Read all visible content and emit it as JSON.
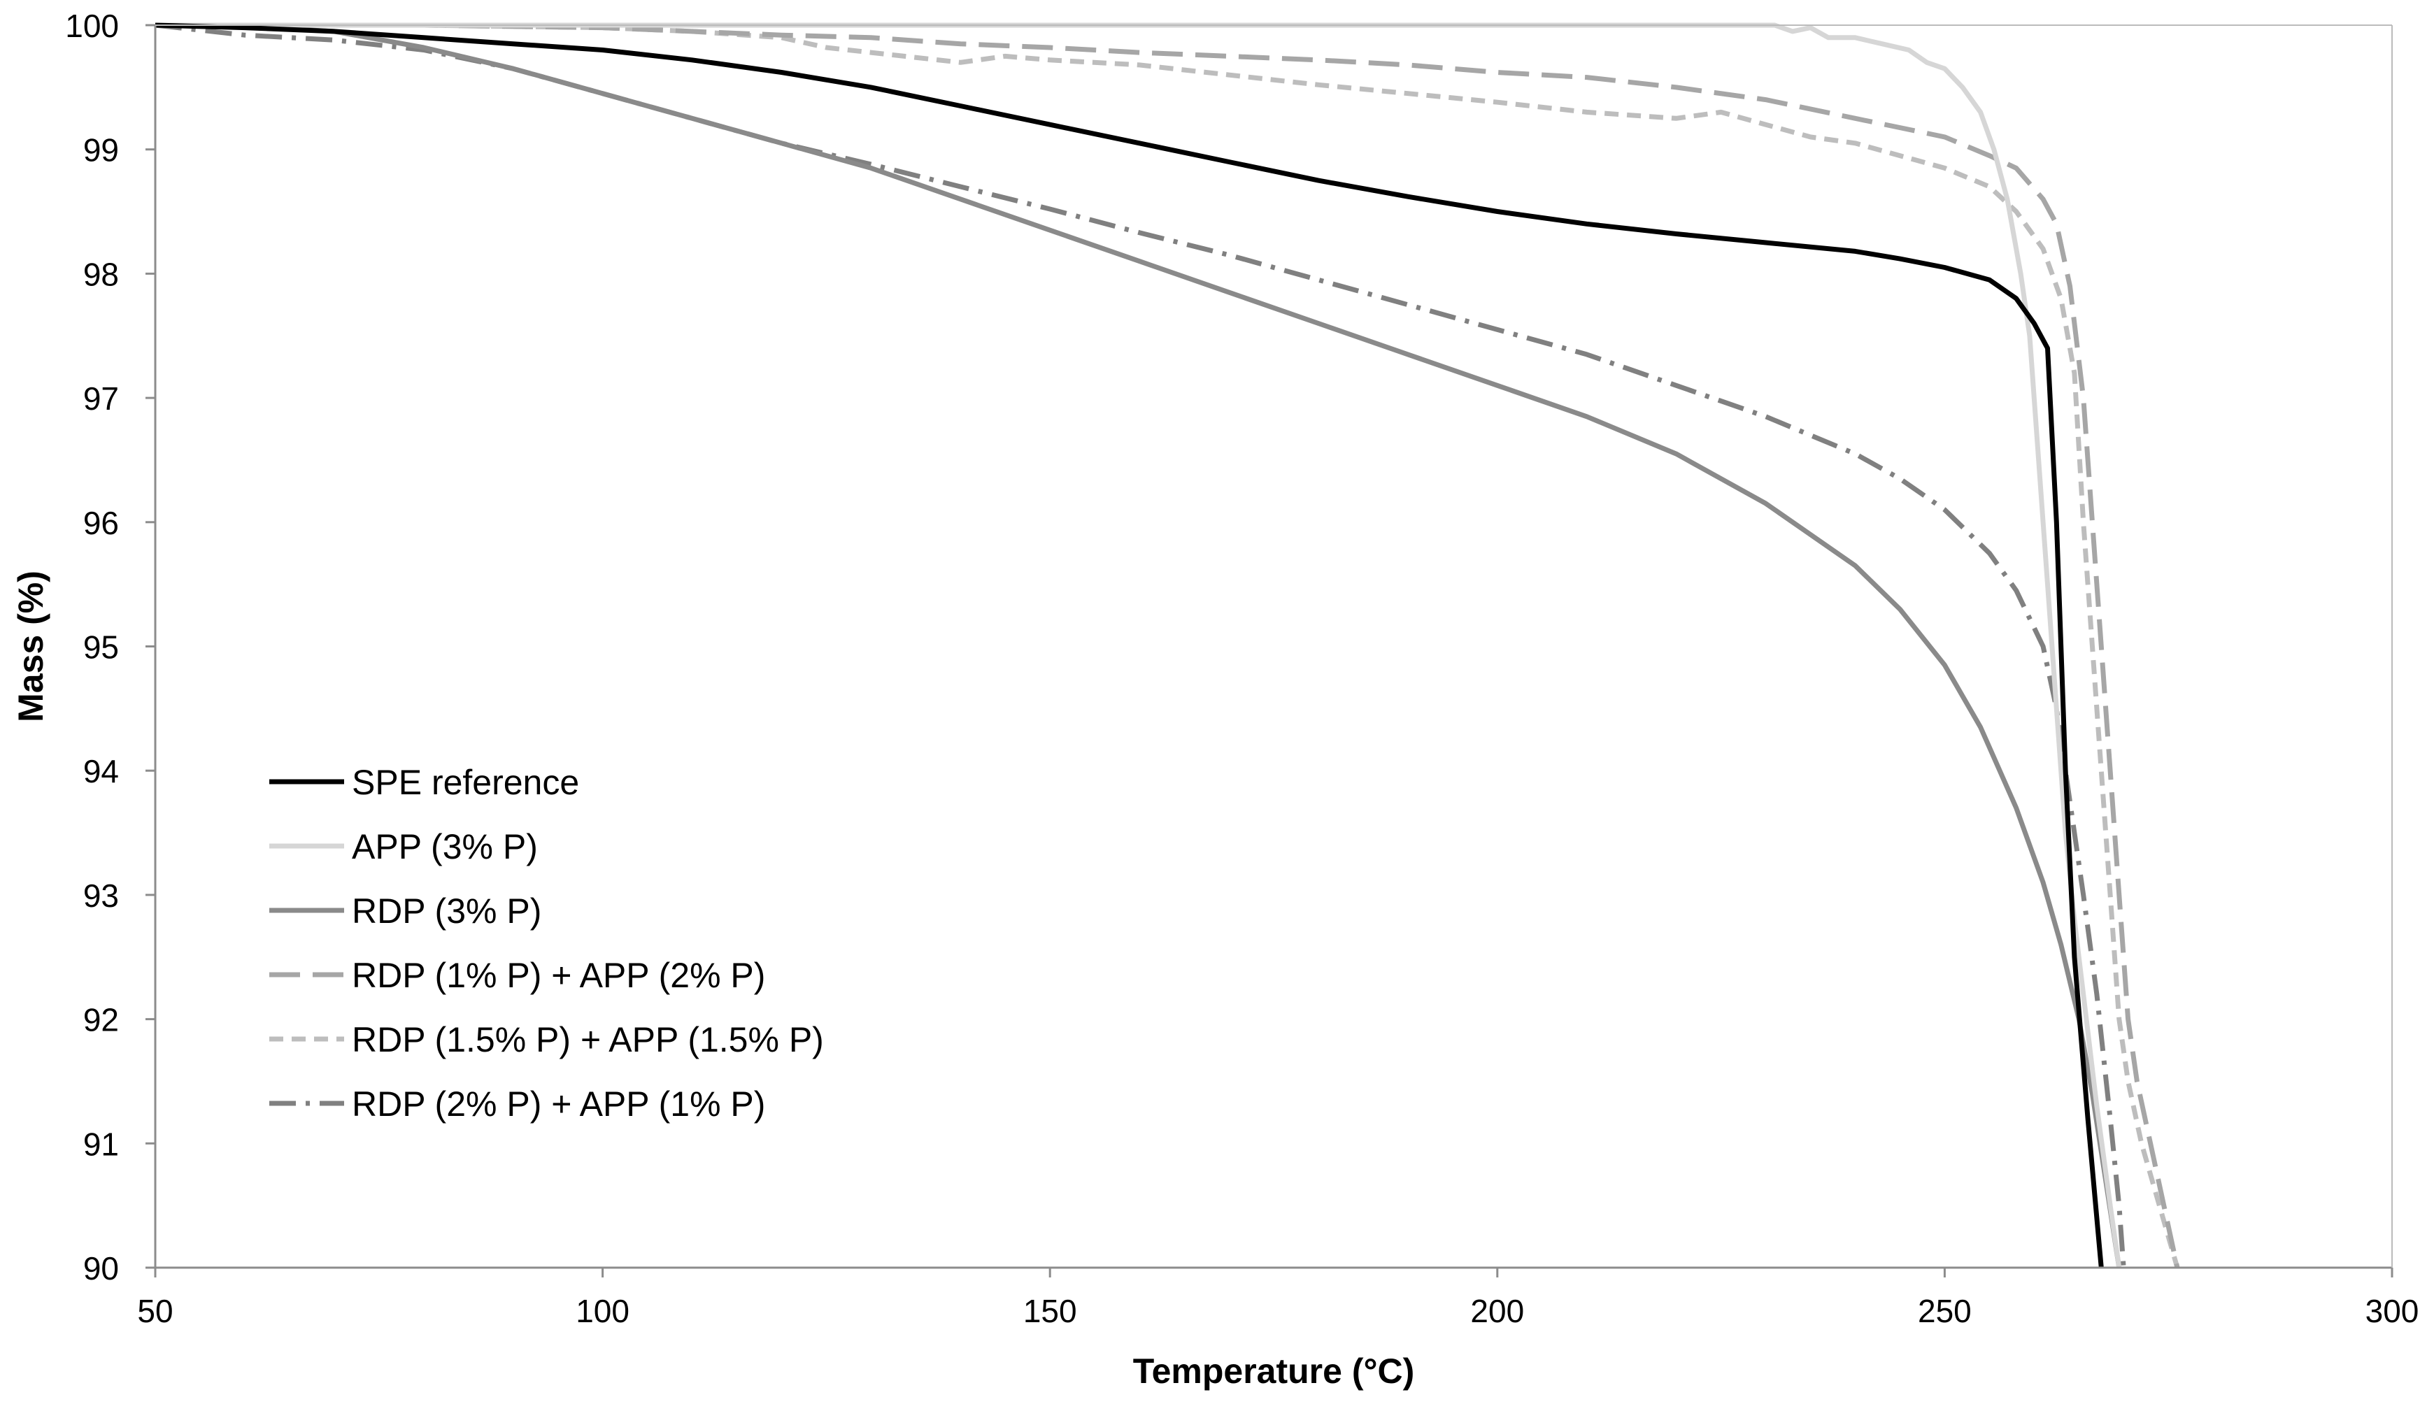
{
  "chart_data": {
    "type": "line",
    "title": "",
    "xlabel": "Temperature (°C)",
    "ylabel": "Mass (%)",
    "xlim": [
      50,
      300
    ],
    "ylim": [
      90,
      100
    ],
    "xticks": [
      50,
      100,
      150,
      200,
      250,
      300
    ],
    "yticks": [
      90,
      91,
      92,
      93,
      94,
      95,
      96,
      97,
      98,
      99,
      100
    ],
    "grid": false,
    "legend_position": "bottom-left",
    "series": [
      {
        "name": "SPE reference",
        "color": "#000000",
        "dash": "solid",
        "points": [
          [
            50,
            100
          ],
          [
            60,
            99.98
          ],
          [
            70,
            99.95
          ],
          [
            80,
            99.9
          ],
          [
            90,
            99.85
          ],
          [
            100,
            99.8
          ],
          [
            110,
            99.72
          ],
          [
            120,
            99.62
          ],
          [
            130,
            99.5
          ],
          [
            140,
            99.35
          ],
          [
            150,
            99.2
          ],
          [
            160,
            99.05
          ],
          [
            170,
            98.9
          ],
          [
            180,
            98.75
          ],
          [
            190,
            98.62
          ],
          [
            200,
            98.5
          ],
          [
            210,
            98.4
          ],
          [
            220,
            98.32
          ],
          [
            230,
            98.25
          ],
          [
            240,
            98.18
          ],
          [
            245,
            98.12
          ],
          [
            250,
            98.05
          ],
          [
            255,
            97.95
          ],
          [
            258,
            97.8
          ],
          [
            260,
            97.6
          ],
          [
            261.5,
            97.4
          ],
          [
            262.5,
            96
          ],
          [
            263.5,
            94
          ],
          [
            264.5,
            92.5
          ],
          [
            266,
            91.2
          ],
          [
            267.5,
            90
          ]
        ]
      },
      {
        "name": "APP (3% P)",
        "color": "#d6d6d6",
        "dash": "solid",
        "points": [
          [
            50,
            100
          ],
          [
            100,
            100
          ],
          [
            150,
            100
          ],
          [
            200,
            100
          ],
          [
            231,
            100
          ],
          [
            233,
            99.95
          ],
          [
            235,
            99.98
          ],
          [
            237,
            99.9
          ],
          [
            240,
            99.9
          ],
          [
            243,
            99.85
          ],
          [
            246,
            99.8
          ],
          [
            248,
            99.7
          ],
          [
            250,
            99.65
          ],
          [
            252,
            99.5
          ],
          [
            254,
            99.3
          ],
          [
            255.5,
            99
          ],
          [
            257,
            98.6
          ],
          [
            258.5,
            98
          ],
          [
            259.5,
            97.5
          ],
          [
            260.5,
            96.5
          ],
          [
            261.5,
            95.5
          ],
          [
            262.5,
            94.5
          ],
          [
            263.5,
            93.5
          ],
          [
            264.5,
            92.8
          ],
          [
            265.5,
            92.2
          ],
          [
            267,
            91.3
          ],
          [
            268.5,
            90.5
          ],
          [
            269.5,
            90
          ]
        ]
      },
      {
        "name": "RDP (3% P)",
        "color": "#8a8a8a",
        "dash": "solid",
        "points": [
          [
            50,
            100
          ],
          [
            60,
            99.99
          ],
          [
            70,
            99.95
          ],
          [
            80,
            99.82
          ],
          [
            90,
            99.65
          ],
          [
            100,
            99.45
          ],
          [
            110,
            99.25
          ],
          [
            120,
            99.05
          ],
          [
            130,
            98.85
          ],
          [
            140,
            98.6
          ],
          [
            150,
            98.35
          ],
          [
            160,
            98.1
          ],
          [
            170,
            97.85
          ],
          [
            180,
            97.6
          ],
          [
            190,
            97.35
          ],
          [
            200,
            97.1
          ],
          [
            210,
            96.85
          ],
          [
            220,
            96.55
          ],
          [
            230,
            96.15
          ],
          [
            240,
            95.65
          ],
          [
            245,
            95.3
          ],
          [
            250,
            94.85
          ],
          [
            254,
            94.35
          ],
          [
            258,
            93.7
          ],
          [
            261,
            93.1
          ],
          [
            263,
            92.6
          ],
          [
            265,
            92
          ],
          [
            266.5,
            91.4
          ],
          [
            268,
            90.7
          ],
          [
            269.5,
            90
          ]
        ]
      },
      {
        "name": "RDP (1% P) + APP (2% P)",
        "color": "#a6a6a6",
        "dash": "long",
        "points": [
          [
            50,
            100
          ],
          [
            80,
            100
          ],
          [
            100,
            99.98
          ],
          [
            120,
            99.92
          ],
          [
            130,
            99.9
          ],
          [
            140,
            99.85
          ],
          [
            150,
            99.82
          ],
          [
            160,
            99.78
          ],
          [
            170,
            99.75
          ],
          [
            180,
            99.72
          ],
          [
            190,
            99.68
          ],
          [
            200,
            99.62
          ],
          [
            210,
            99.58
          ],
          [
            220,
            99.5
          ],
          [
            230,
            99.4
          ],
          [
            240,
            99.25
          ],
          [
            250,
            99.1
          ],
          [
            255,
            98.95
          ],
          [
            258,
            98.85
          ],
          [
            261,
            98.6
          ],
          [
            262.5,
            98.4
          ],
          [
            264,
            97.9
          ],
          [
            265.5,
            97
          ],
          [
            266.5,
            96
          ],
          [
            267.5,
            95
          ],
          [
            268.5,
            94
          ],
          [
            269.5,
            93
          ],
          [
            270.5,
            92
          ],
          [
            271.5,
            91.5
          ],
          [
            273,
            91
          ],
          [
            274.5,
            90.5
          ],
          [
            276,
            90
          ]
        ]
      },
      {
        "name": "RDP (1.5% P) + APP (1.5% P)",
        "color": "#bdbdbd",
        "dash": "short",
        "points": [
          [
            50,
            100
          ],
          [
            80,
            100
          ],
          [
            100,
            99.98
          ],
          [
            110,
            99.95
          ],
          [
            120,
            99.9
          ],
          [
            125,
            99.82
          ],
          [
            130,
            99.78
          ],
          [
            140,
            99.7
          ],
          [
            145,
            99.75
          ],
          [
            150,
            99.72
          ],
          [
            160,
            99.68
          ],
          [
            170,
            99.6
          ],
          [
            180,
            99.52
          ],
          [
            190,
            99.45
          ],
          [
            200,
            99.38
          ],
          [
            210,
            99.3
          ],
          [
            220,
            99.25
          ],
          [
            225,
            99.3
          ],
          [
            230,
            99.2
          ],
          [
            235,
            99.1
          ],
          [
            240,
            99.05
          ],
          [
            245,
            98.95
          ],
          [
            250,
            98.85
          ],
          [
            255,
            98.7
          ],
          [
            258,
            98.5
          ],
          [
            261,
            98.2
          ],
          [
            263,
            97.8
          ],
          [
            264.5,
            97.2
          ],
          [
            265.5,
            96
          ],
          [
            266.5,
            95
          ],
          [
            267.5,
            94
          ],
          [
            268.5,
            93
          ],
          [
            269.5,
            92
          ],
          [
            270.5,
            91.5
          ],
          [
            272,
            91
          ],
          [
            274,
            90.5
          ],
          [
            276,
            90
          ]
        ]
      },
      {
        "name": "RDP (2% P) + APP (1% P)",
        "color": "#808080",
        "dash": "dashdot",
        "points": [
          [
            50,
            100
          ],
          [
            60,
            99.92
          ],
          [
            70,
            99.88
          ],
          [
            80,
            99.8
          ],
          [
            90,
            99.65
          ],
          [
            100,
            99.45
          ],
          [
            110,
            99.25
          ],
          [
            120,
            99.05
          ],
          [
            130,
            98.88
          ],
          [
            140,
            98.7
          ],
          [
            150,
            98.52
          ],
          [
            160,
            98.33
          ],
          [
            170,
            98.15
          ],
          [
            180,
            97.95
          ],
          [
            190,
            97.75
          ],
          [
            200,
            97.55
          ],
          [
            210,
            97.35
          ],
          [
            220,
            97.1
          ],
          [
            230,
            96.85
          ],
          [
            240,
            96.55
          ],
          [
            245,
            96.35
          ],
          [
            250,
            96.1
          ],
          [
            255,
            95.75
          ],
          [
            258,
            95.45
          ],
          [
            261,
            95
          ],
          [
            262.5,
            94.5
          ],
          [
            263.5,
            94
          ],
          [
            264.5,
            93.5
          ],
          [
            265.5,
            93
          ],
          [
            267,
            92.2
          ],
          [
            268.5,
            91.2
          ],
          [
            269.5,
            90.5
          ],
          [
            270,
            90
          ]
        ]
      }
    ]
  }
}
